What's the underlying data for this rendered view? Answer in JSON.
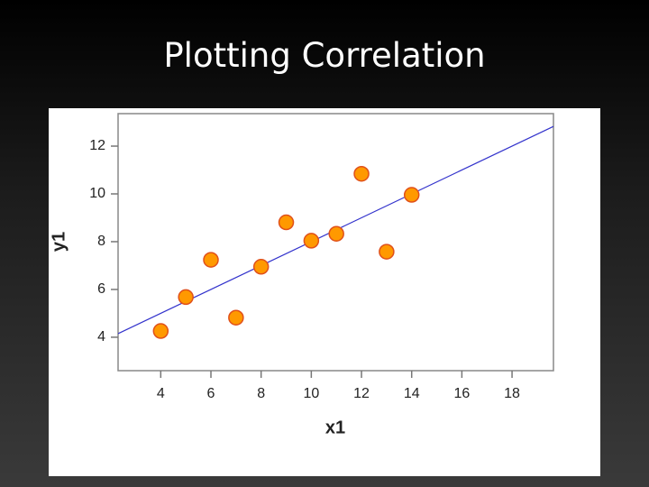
{
  "slide_title": "Plotting Correlation",
  "chart_data": {
    "type": "scatter",
    "x_label": "x1",
    "y_label": "y1",
    "x": [
      10,
      8,
      13,
      9,
      11,
      14,
      6,
      4,
      12,
      7,
      5
    ],
    "values": [
      8.04,
      6.95,
      7.58,
      8.81,
      8.33,
      9.96,
      7.24,
      4.26,
      10.84,
      4.82,
      5.68
    ],
    "color": "#ff9900",
    "xlim": [
      2.3,
      19.65
    ],
    "ylim": [
      2.6,
      13.36
    ],
    "xticks": [
      4,
      6,
      8,
      10,
      12,
      14,
      16,
      18
    ],
    "yticks": [
      4,
      6,
      8,
      10,
      12
    ],
    "trend_line": {
      "intercept": 3,
      "slope": 0.5,
      "color": "#3333cc"
    }
  }
}
